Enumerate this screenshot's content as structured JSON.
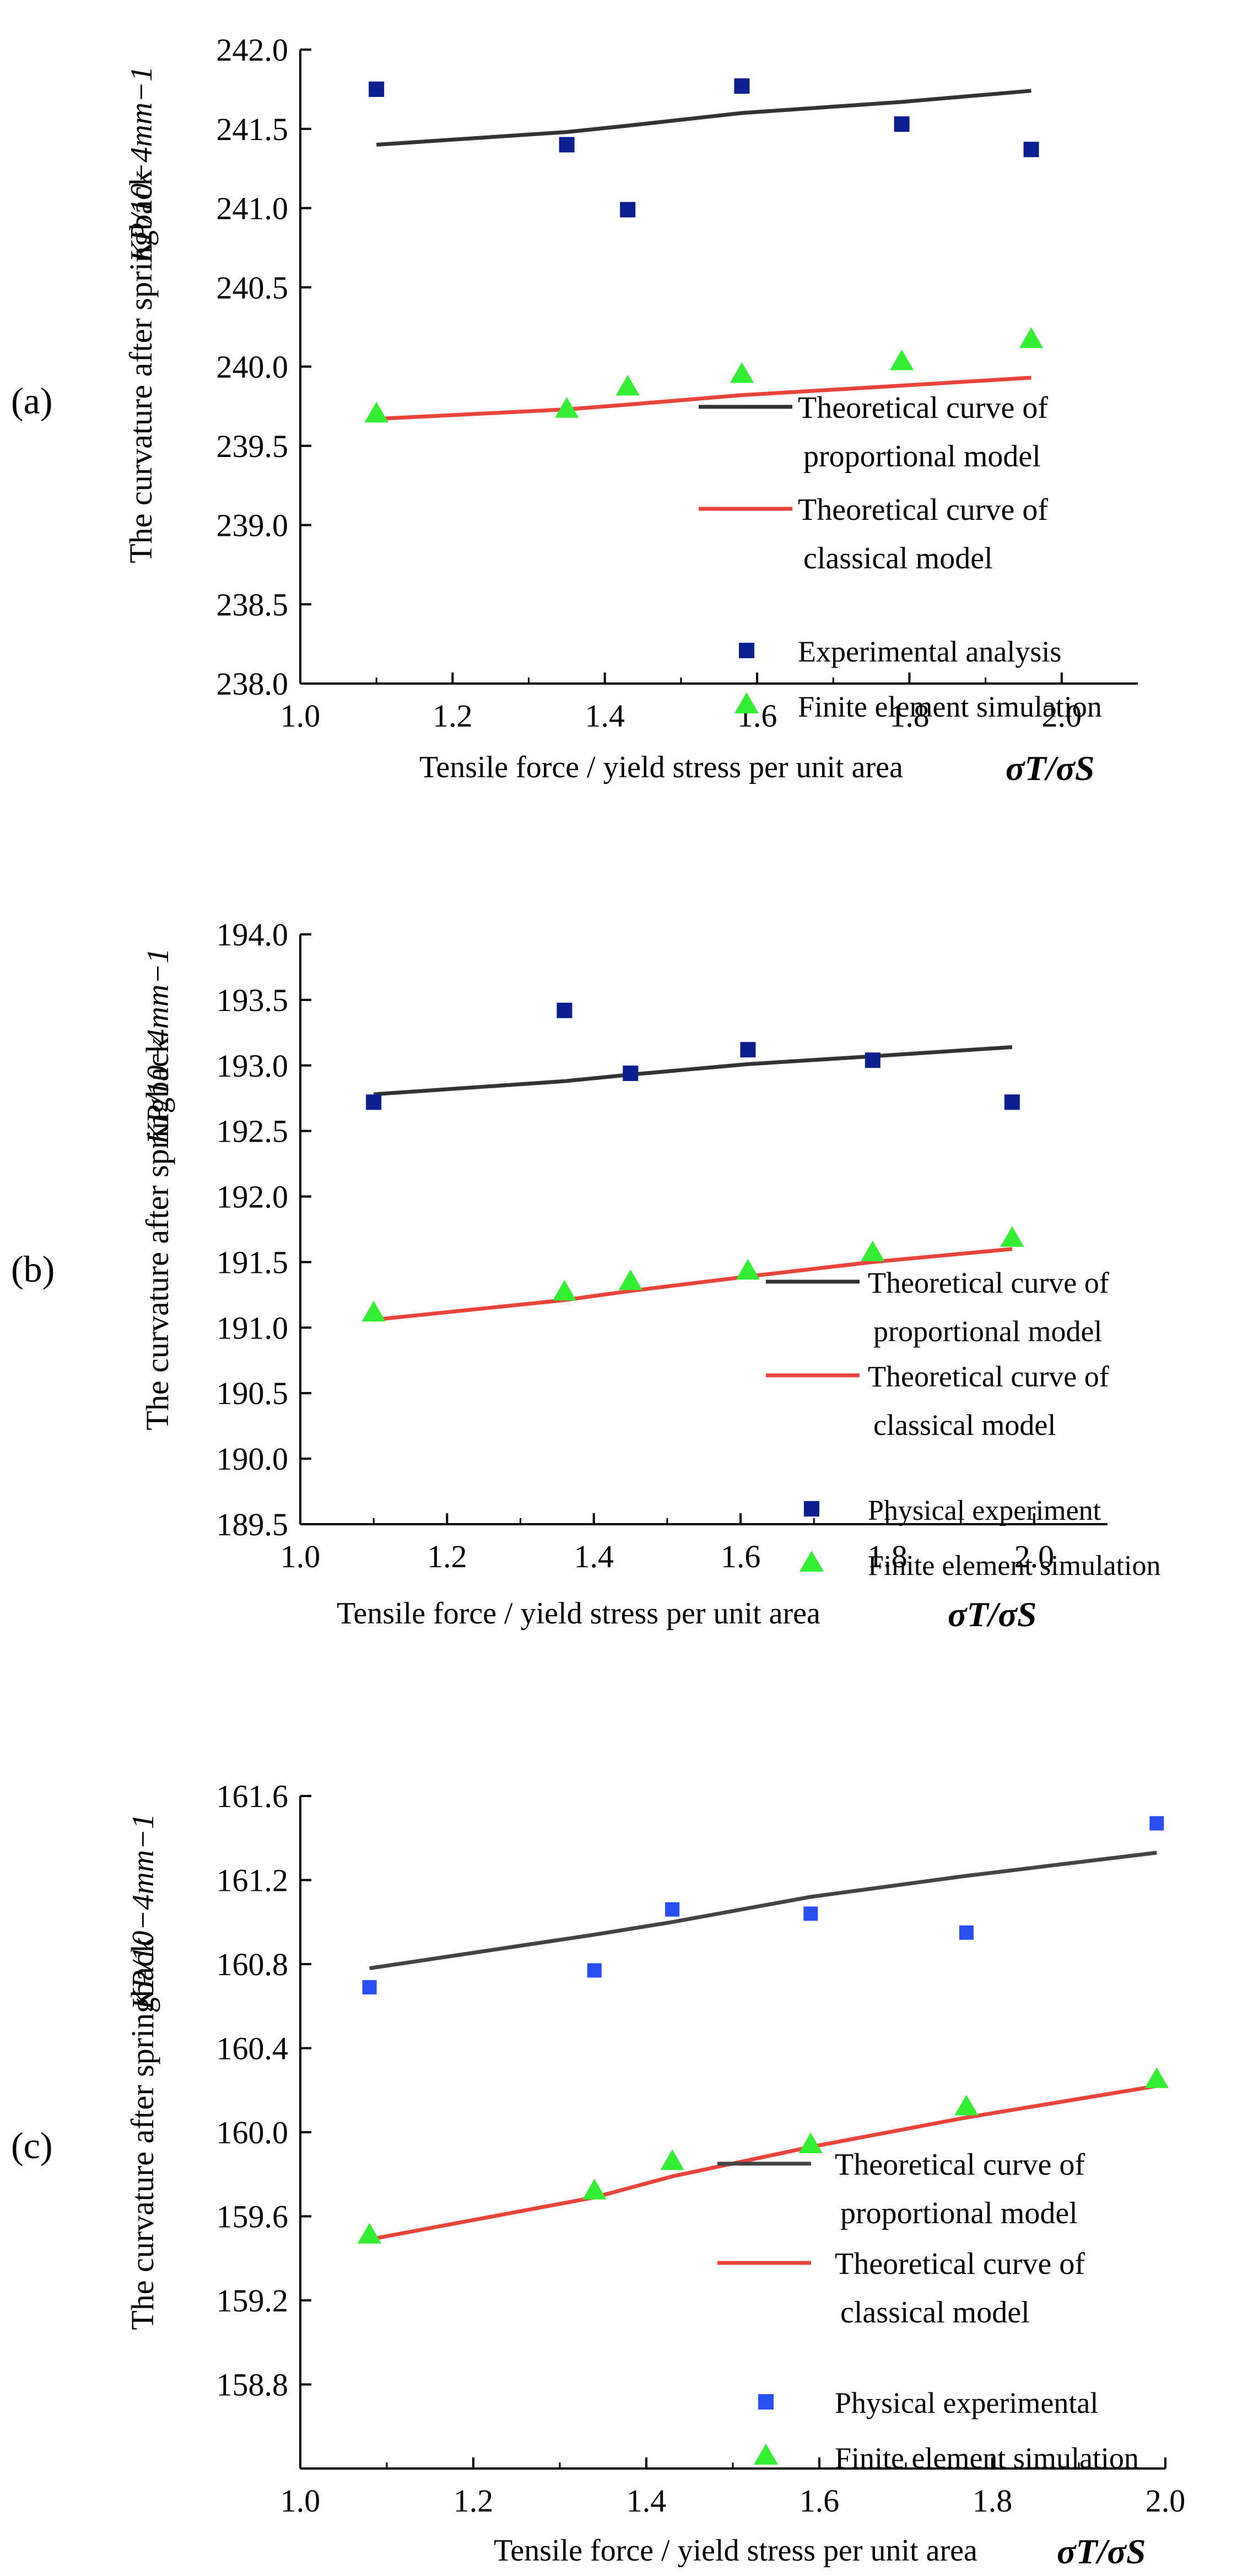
{
  "chart_data": [
    {
      "type": "line",
      "panel_label": "(a)",
      "xlabel": "Tensile force / yield stress per unit area",
      "x_symbol": "σT/σS",
      "ylabel": "The curvature after springback",
      "y_symbol": "KP/10−4mm−1",
      "xlim": [
        1.0,
        2.1
      ],
      "ylim": [
        238.0,
        242.0
      ],
      "xticks": [
        "1.0",
        "1.2",
        "1.4",
        "1.6",
        "1.8",
        "2.0"
      ],
      "yticks": [
        "238.0",
        "238.5",
        "239.0",
        "239.5",
        "240.0",
        "240.5",
        "241.0",
        "241.5",
        "242.0"
      ],
      "series": [
        {
          "name": "Theoretical curve of",
          "name2": "proportional model",
          "kind": "line",
          "color": "#333333",
          "x": [
            1.1,
            1.35,
            1.43,
            1.58,
            1.79,
            1.96
          ],
          "y": [
            241.4,
            241.48,
            241.52,
            241.6,
            241.67,
            241.74
          ]
        },
        {
          "name": "Theoretical curve of",
          "name2": "classical model",
          "kind": "line",
          "color": "#e8443a",
          "x": [
            1.1,
            1.35,
            1.43,
            1.58,
            1.79,
            1.96
          ],
          "y": [
            239.67,
            239.73,
            239.76,
            239.82,
            239.88,
            239.93
          ]
        },
        {
          "name": "Experimental analysis",
          "kind": "square",
          "color": "#0b1f8f",
          "x": [
            1.1,
            1.35,
            1.43,
            1.58,
            1.79,
            1.96
          ],
          "y": [
            241.75,
            241.4,
            240.99,
            241.77,
            241.53,
            241.37
          ]
        },
        {
          "name": "Finite element simulation",
          "kind": "triangle",
          "color": "#33ee33",
          "x": [
            1.1,
            1.35,
            1.43,
            1.58,
            1.79,
            1.96
          ],
          "y": [
            239.7,
            239.73,
            239.87,
            239.95,
            240.03,
            240.17
          ]
        }
      ]
    },
    {
      "type": "line",
      "panel_label": "(b)",
      "xlabel": "Tensile force / yield stress per unit area",
      "x_symbol": "σT/σS",
      "ylabel": "The curvature after springback",
      "y_symbol": "KP/10−4mm−1",
      "xlim": [
        1.0,
        2.1
      ],
      "ylim": [
        189.5,
        194.0
      ],
      "xticks": [
        "1.0",
        "1.2",
        "1.4",
        "1.6",
        "1.8",
        "2.0"
      ],
      "yticks": [
        "189.5",
        "190.0",
        "190.5",
        "191.0",
        "191.5",
        "192.0",
        "192.5",
        "193.0",
        "193.5",
        "194.0"
      ],
      "series": [
        {
          "name": "Theoretical curve of",
          "name2": "proportional model",
          "kind": "line",
          "color": "#333333",
          "x": [
            1.1,
            1.36,
            1.45,
            1.61,
            1.78,
            1.97
          ],
          "y": [
            192.78,
            192.88,
            192.93,
            193.01,
            193.07,
            193.14
          ]
        },
        {
          "name": "Theoretical curve of",
          "name2": "classical model",
          "kind": "line",
          "color": "#e8443a",
          "x": [
            1.1,
            1.36,
            1.45,
            1.61,
            1.78,
            1.97
          ],
          "y": [
            191.06,
            191.21,
            191.28,
            191.39,
            191.5,
            191.6
          ]
        },
        {
          "name": "Physical experiment",
          "kind": "square",
          "color": "#0b1f8f",
          "x": [
            1.1,
            1.36,
            1.45,
            1.61,
            1.78,
            1.97
          ],
          "y": [
            192.72,
            193.42,
            192.94,
            193.12,
            193.04,
            192.72
          ]
        },
        {
          "name": "Finite element simulation",
          "kind": "triangle",
          "color": "#33ee33",
          "x": [
            1.1,
            1.36,
            1.45,
            1.61,
            1.78,
            1.97
          ],
          "y": [
            191.11,
            191.27,
            191.35,
            191.43,
            191.57,
            191.68
          ]
        }
      ]
    },
    {
      "type": "line",
      "panel_label": "(c)",
      "xlabel": "Tensile force / yield stress per unit area",
      "x_symbol": "σT/σS",
      "ylabel": "The curvature after springback",
      "y_symbol": "KP/10−4mm−1",
      "xlim": [
        1.0,
        2.0
      ],
      "ylim": [
        158.4,
        161.6
      ],
      "xticks": [
        "1.0",
        "1.2",
        "1.4",
        "1.6",
        "1.8",
        "2.0"
      ],
      "yticks": [
        "158.8",
        "159.2",
        "159.6",
        "160.0",
        "160.4",
        "160.8",
        "161.2",
        "161.6"
      ],
      "series": [
        {
          "name": "Theoretical curve of",
          "name2": "proportional model",
          "kind": "line",
          "color": "#444444",
          "x": [
            1.08,
            1.34,
            1.43,
            1.59,
            1.77,
            1.99
          ],
          "y": [
            160.78,
            160.94,
            161.0,
            161.12,
            161.22,
            161.33
          ]
        },
        {
          "name": "Theoretical curve of",
          "name2": "classical model",
          "kind": "line",
          "color": "#e8443a",
          "x": [
            1.08,
            1.34,
            1.43,
            1.59,
            1.77,
            1.99
          ],
          "y": [
            159.49,
            159.69,
            159.79,
            159.93,
            160.07,
            160.22
          ]
        },
        {
          "name": "Physical experimental",
          "kind": "square",
          "color": "#2a4ff0",
          "x": [
            1.08,
            1.34,
            1.43,
            1.59,
            1.77,
            1.99
          ],
          "y": [
            160.69,
            160.77,
            161.06,
            161.04,
            160.95,
            161.47
          ]
        },
        {
          "name": "Finite element simulation",
          "kind": "triangle",
          "color": "#33ee33",
          "x": [
            1.08,
            1.34,
            1.43,
            1.59,
            1.77,
            1.99
          ],
          "y": [
            159.51,
            159.72,
            159.86,
            159.94,
            160.12,
            160.25
          ]
        }
      ]
    }
  ]
}
